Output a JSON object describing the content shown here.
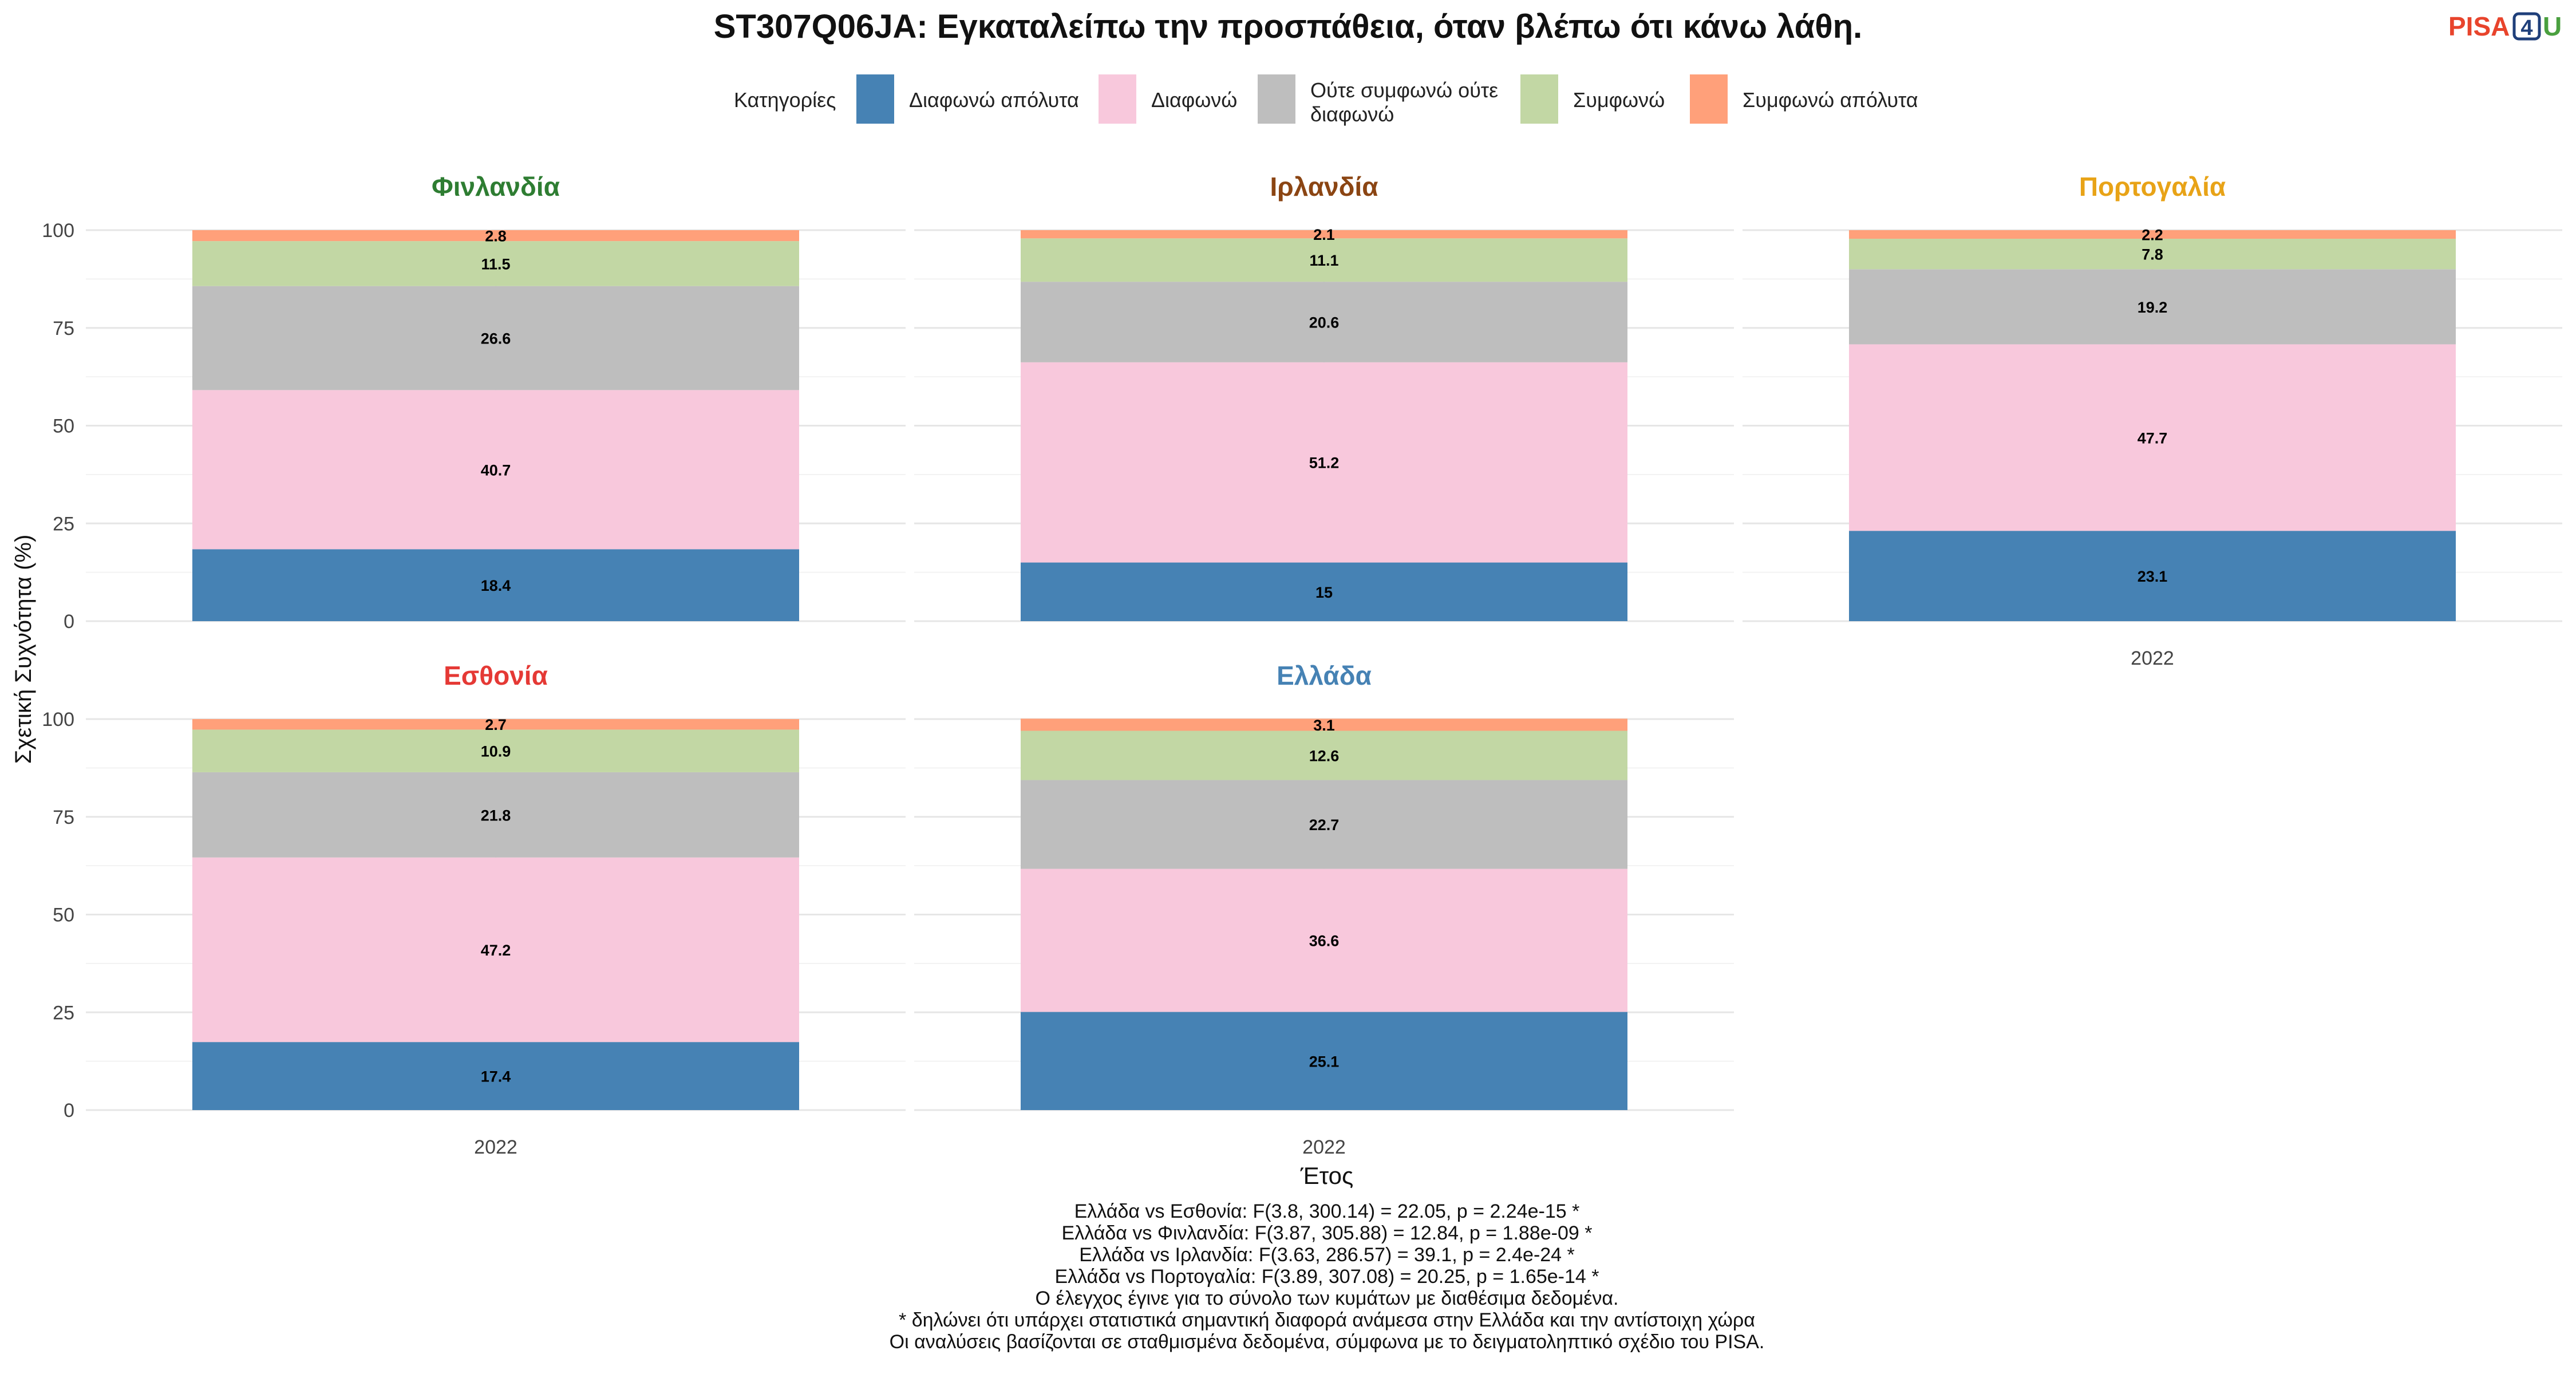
{
  "title": "ST307Q06JA: Εγκαταλείπω την προσπάθεια, όταν βλέπω ότι κάνω λάθη.",
  "logo": {
    "pisa": "PISA",
    "four": "4",
    "u": "U"
  },
  "legend": {
    "title": "Κατηγορίες",
    "items": [
      {
        "label": "Διαφωνώ απόλυτα",
        "color": "#4682b4"
      },
      {
        "label": "Διαφωνώ",
        "color": "#f8c8dc"
      },
      {
        "label": "Ούτε συμφωνώ ούτε διαφωνώ",
        "lines": [
          "Ούτε συμφωνώ ούτε",
          "διαφωνώ"
        ],
        "color": "#bebebe"
      },
      {
        "label": "Συμφωνώ",
        "color": "#c2d7a4"
      },
      {
        "label": "Συμφωνώ απόλυτα",
        "color": "#ffa07a"
      }
    ]
  },
  "chart_data": {
    "type": "bar",
    "stacked": true,
    "ylabel": "Σχετική Συχνότητα (%)",
    "xlabel": "Έτος",
    "ylim": [
      0,
      100
    ],
    "yticks": [
      0,
      25,
      50,
      75,
      100
    ],
    "grid": true,
    "legend_position": "top",
    "categories": [
      "2022"
    ],
    "panels": [
      {
        "name": "Φινλανδία",
        "color": "#2e7d32",
        "year": "2022",
        "show_x": false,
        "values": [
          18.4,
          40.7,
          26.6,
          11.5,
          2.8
        ],
        "labels": [
          "18.4",
          "40.7",
          "26.6",
          "11.5",
          "2.8"
        ]
      },
      {
        "name": "Ιρλανδία",
        "color": "#8b4513",
        "year": "2022",
        "show_x": false,
        "values": [
          15,
          51.2,
          20.6,
          11.1,
          2.1
        ],
        "labels": [
          "15",
          "51.2",
          "20.6",
          "11.1",
          "2.1"
        ]
      },
      {
        "name": "Πορτογαλία",
        "color": "#e8a317",
        "year": "2022",
        "show_x": true,
        "values": [
          23.1,
          47.7,
          19.2,
          7.8,
          2.2
        ],
        "labels": [
          "23.1",
          "47.7",
          "19.2",
          "7.8",
          "2.2"
        ]
      },
      {
        "name": "Εσθονία",
        "color": "#e53935",
        "year": "2022",
        "show_x": true,
        "values": [
          17.4,
          47.2,
          21.8,
          10.9,
          2.7
        ],
        "labels": [
          "17.4",
          "47.2",
          "21.8",
          "10.9",
          "2.7"
        ]
      },
      {
        "name": "Ελλάδα",
        "color": "#4682b4",
        "year": "2022",
        "show_x": true,
        "values": [
          25.1,
          36.6,
          22.7,
          12.6,
          3.1
        ],
        "labels": [
          "25.1",
          "36.6",
          "22.7",
          "12.6",
          "3.1"
        ]
      }
    ]
  },
  "footnotes": [
    "Ελλάδα vs Εσθονία: F(3.8, 300.14) = 22.05, p = 2.24e-15 *",
    "Ελλάδα vs Φινλανδία: F(3.87, 305.88) = 12.84, p = 1.88e-09 *",
    "Ελλάδα vs Ιρλανδία: F(3.63, 286.57) = 39.1, p = 2.4e-24 *",
    "Ελλάδα vs Πορτογαλία: F(3.89, 307.08) = 20.25, p = 1.65e-14 *",
    "Ο έλεγχος έγινε για το σύνολο των κυμάτων με διαθέσιμα δεδομένα.",
    "* δηλώνει ότι υπάρχει στατιστικά σημαντική διαφορά ανάμεσα στην Ελλάδα και την αντίστοιχη χώρα",
    "Οι αναλύσεις βασίζονται σε σταθμισμένα δεδομένα, σύμφωνα με το δειγματοληπτικό σχέδιο του PISA."
  ]
}
